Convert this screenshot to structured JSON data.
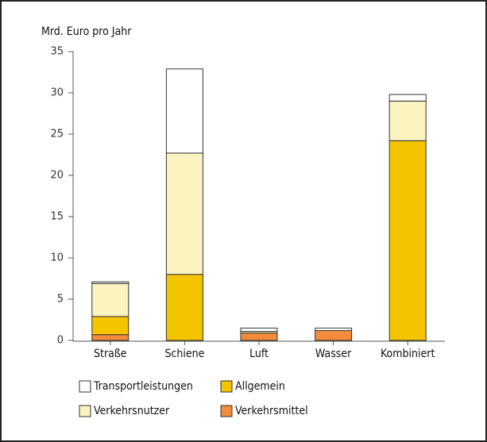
{
  "chart_data": {
    "type": "stacked_bar",
    "y_label": "Mrd. Euro pro Jahr",
    "categories": [
      "Straße",
      "Schiene",
      "Luft",
      "Wasser",
      "Kombiniert"
    ],
    "series": [
      {
        "name": "Verkehrsmittel",
        "color": "#f08c3c",
        "values": [
          0.7,
          0,
          0.9,
          1.2,
          0
        ]
      },
      {
        "name": "Allgemein",
        "color": "#f5c400",
        "values": [
          2.2,
          8.0,
          0,
          0,
          24.2
        ]
      },
      {
        "name": "Verkehrsnutzer",
        "color": "#fdf3c0",
        "values": [
          4.0,
          14.7,
          0.2,
          0,
          4.8
        ]
      },
      {
        "name": "Transportleistungen",
        "color": "#ffffff",
        "values": [
          0.2,
          10.2,
          0.4,
          0.3,
          0.8
        ]
      }
    ],
    "ylim": [
      0,
      35
    ],
    "yticks": [
      0,
      5,
      10,
      15,
      20,
      25,
      30,
      35
    ]
  }
}
